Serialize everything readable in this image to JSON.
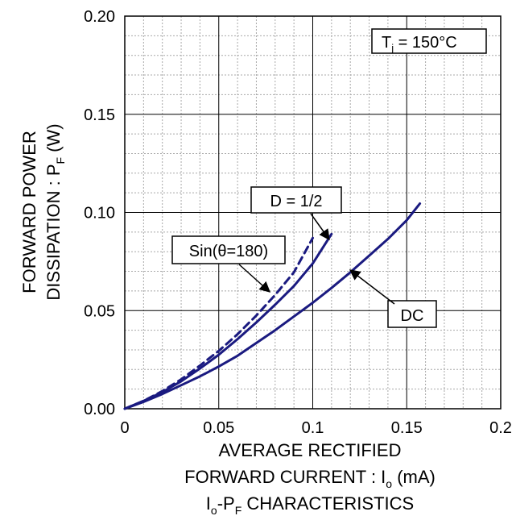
{
  "chart_data": {
    "type": "line",
    "xlabel_line1": "AVERAGE RECTIFIED",
    "xlabel_line2_main": "FORWARD CURRENT : I",
    "xlabel_line2_sub": "o",
    "xlabel_line2_unit": " (mA)",
    "caption_i": "I",
    "caption_i_sub": "o",
    "caption_mid": "-P",
    "caption_p_sub": "F",
    "caption_rest": " CHARACTERISTICS",
    "ylabel_line1": "FORWARD POWER",
    "ylabel_line2_main": "DISSIPATION : P",
    "ylabel_line2_sub": "F",
    "ylabel_line2_unit": " (W)",
    "condition_main": "T",
    "condition_sub": "j",
    "condition_rest": " = 150°C",
    "xlim": [
      0,
      0.2
    ],
    "ylim": [
      0,
      0.2
    ],
    "x_ticks": [
      "0",
      "0.05",
      "0.1",
      "0.15",
      "0.2"
    ],
    "y_ticks": [
      "0.00",
      "0.05",
      "0.10",
      "0.15",
      "0.20"
    ],
    "grid": true,
    "series": [
      {
        "name": "DC",
        "style": "solid",
        "x": [
          0,
          0.01,
          0.02,
          0.03,
          0.04,
          0.05,
          0.06,
          0.07,
          0.08,
          0.09,
          0.1,
          0.11,
          0.12,
          0.13,
          0.14,
          0.15,
          0.157
        ],
        "y": [
          0,
          0.0035,
          0.0075,
          0.012,
          0.0165,
          0.0215,
          0.027,
          0.0335,
          0.04,
          0.047,
          0.054,
          0.0615,
          0.0695,
          0.078,
          0.0865,
          0.096,
          0.1045
        ]
      },
      {
        "name": "D = 1/2",
        "style": "solid",
        "x": [
          0,
          0.01,
          0.02,
          0.03,
          0.04,
          0.05,
          0.06,
          0.07,
          0.08,
          0.09,
          0.1,
          0.11
        ],
        "y": [
          0,
          0.004,
          0.0085,
          0.014,
          0.0205,
          0.0275,
          0.0355,
          0.044,
          0.053,
          0.0625,
          0.074,
          0.089
        ]
      },
      {
        "name": "Sin(θ=180)",
        "style": "dashed",
        "x": [
          0,
          0.01,
          0.02,
          0.03,
          0.04,
          0.05,
          0.06,
          0.07,
          0.08,
          0.09,
          0.1
        ],
        "y": [
          0,
          0.004,
          0.009,
          0.015,
          0.022,
          0.0295,
          0.038,
          0.0475,
          0.058,
          0.0695,
          0.087
        ]
      }
    ],
    "annotations": [
      {
        "text": "D = 1/2"
      },
      {
        "text": "Sin(θ=180)"
      },
      {
        "text": "DC"
      }
    ],
    "line_color": "#1a1a80",
    "grid_color": "#a8a8a8"
  }
}
